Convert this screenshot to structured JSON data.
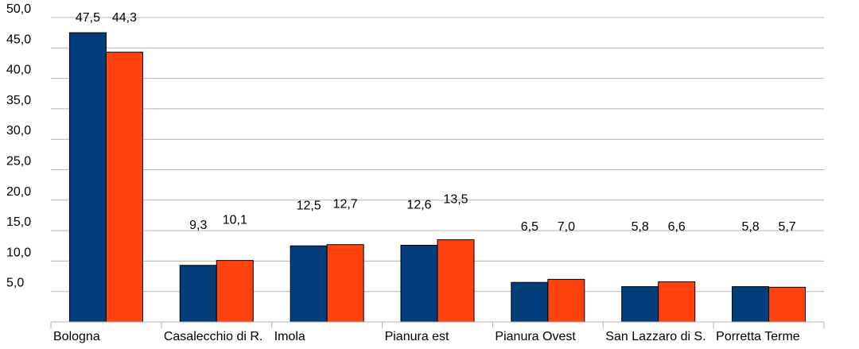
{
  "chart_data": {
    "type": "bar",
    "categories": [
      "Bologna",
      "Casalecchio di R.",
      "Imola",
      "Pianura est",
      "Pianura Ovest",
      "San Lazzaro di S.",
      "Porretta Terme"
    ],
    "series": [
      {
        "color": "#003d7a",
        "values": [
          47.5,
          9.3,
          12.5,
          12.6,
          6.5,
          5.8,
          5.8
        ]
      },
      {
        "color": "#ff420e",
        "values": [
          44.3,
          10.1,
          12.7,
          13.5,
          7.0,
          6.6,
          5.7
        ]
      }
    ],
    "ylim": [
      0,
      50
    ],
    "yticks": [
      "",
      "5,0",
      "10,0",
      "15,0",
      "20,0",
      "25,0",
      "30,0",
      "35,0",
      "40,0",
      "45,0",
      "50,0"
    ],
    "grid": true,
    "title": "",
    "xlabel": "",
    "ylabel": ""
  }
}
